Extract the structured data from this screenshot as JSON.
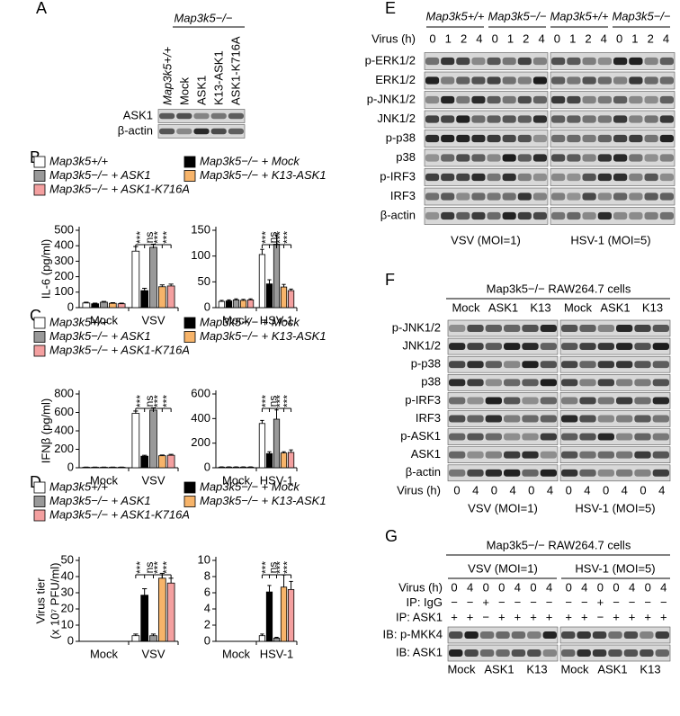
{
  "panel_labels": [
    "A",
    "B",
    "C",
    "D",
    "E",
    "F",
    "G"
  ],
  "blot_A": {
    "header": "Map3k5−/−",
    "lanes": [
      "Map3k5+/+",
      "Mock",
      "ASK1",
      "K13-ASK1",
      "ASK1-K716A"
    ],
    "rows": [
      "ASK1",
      "β-actin"
    ]
  },
  "blot_E": {
    "groups": [
      "Map3k5+/+",
      "Map3k5−/−",
      "Map3k5+/+",
      "Map3k5−/−"
    ],
    "virus_label": "Virus (h)",
    "times": [
      0,
      1,
      2,
      4,
      0,
      1,
      2,
      4,
      0,
      1,
      2,
      4,
      0,
      1,
      2,
      4
    ],
    "rows": [
      "p-ERK1/2",
      "ERK1/2",
      "p-JNK1/2",
      "JNK1/2",
      "p-p38",
      "p38",
      "p-IRF3",
      "IRF3",
      "β-actin"
    ],
    "conditions": [
      "VSV (MOI=1)",
      "HSV-1 (MOI=5)"
    ]
  },
  "blot_F": {
    "title": "Map3k5−/− RAW264.7 cells",
    "groups": [
      "Mock",
      "ASK1",
      "K13",
      "Mock",
      "ASK1",
      "K13"
    ],
    "rows": [
      "p-JNK1/2",
      "JNK1/2",
      "p-p38",
      "p38",
      "p-IRF3",
      "IRF3",
      "p-ASK1",
      "ASK1",
      "β-actin"
    ],
    "virus_label": "Virus (h)",
    "times": [
      0,
      4,
      0,
      4,
      0,
      4,
      0,
      4,
      0,
      4,
      0,
      4
    ],
    "conditions": [
      "VSV (MOI=1)",
      "HSV-1 (MOI=5)"
    ]
  },
  "blot_G": {
    "title": "Map3k5−/− RAW264.7 cells",
    "conditions": [
      "VSV (MOI=1)",
      "HSV-1 (MOI=5)"
    ],
    "row_labels": [
      "Virus (h)",
      "IP: IgG",
      "IP: ASK1"
    ],
    "lane_rows": [
      [
        0,
        4,
        0,
        0,
        4,
        0,
        4,
        0,
        4,
        0,
        0,
        4,
        0,
        4
      ],
      [
        "−",
        "−",
        "+",
        "−",
        "−",
        "−",
        "−",
        "−",
        "−",
        "+",
        "−",
        "−",
        "−",
        "−"
      ],
      [
        "+",
        "+",
        "−",
        "+",
        "+",
        "+",
        "+",
        "+",
        "+",
        "−",
        "+",
        "+",
        "+",
        "+"
      ]
    ],
    "rows": [
      "IB: p-MKK4",
      "IB: ASK1"
    ],
    "groups": [
      "Mock",
      "ASK1",
      "K13",
      "Mock",
      "ASK1",
      "K13"
    ]
  },
  "chart_data": [
    {
      "type": "bar",
      "ylabel": "IL-6 (pg/ml)",
      "categories": [
        "Mock",
        "VSV"
      ],
      "ylim": [
        0,
        500
      ],
      "yticks": [
        0,
        100,
        200,
        300,
        400,
        500
      ],
      "significance": [
        "***",
        "ns",
        "***",
        "***"
      ],
      "series": [
        {
          "name": "Map3k5+/+",
          "color": "#ffffff",
          "values": [
            30,
            365
          ],
          "errors": [
            5,
            30
          ]
        },
        {
          "name": "Map3k5−/− + Mock",
          "color": "#000000",
          "values": [
            25,
            110
          ],
          "errors": [
            4,
            15
          ]
        },
        {
          "name": "Map3k5−/− + ASK1",
          "color": "#999999",
          "values": [
            35,
            390
          ],
          "errors": [
            5,
            20
          ]
        },
        {
          "name": "Map3k5−/− + K13-ASK1",
          "color": "#f7b46a",
          "values": [
            28,
            135
          ],
          "errors": [
            4,
            12
          ]
        },
        {
          "name": "Map3k5−/− + ASK1-K716A",
          "color": "#f4a0a0",
          "values": [
            25,
            140
          ],
          "errors": [
            4,
            12
          ]
        }
      ]
    },
    {
      "type": "bar",
      "categories": [
        "Mock",
        "HSV-1"
      ],
      "ylim": [
        0,
        150
      ],
      "yticks": [
        0,
        50,
        100,
        150
      ],
      "significance": [
        "***",
        "ns",
        "***",
        "***"
      ],
      "series": [
        {
          "color": "#ffffff",
          "values": [
            12,
            103
          ],
          "errors": [
            2,
            10
          ]
        },
        {
          "color": "#000000",
          "values": [
            13,
            46
          ],
          "errors": [
            2,
            8
          ]
        },
        {
          "color": "#999999",
          "values": [
            15,
            123
          ],
          "errors": [
            2,
            18
          ]
        },
        {
          "color": "#f7b46a",
          "values": [
            14,
            40
          ],
          "errors": [
            2,
            5
          ]
        },
        {
          "color": "#f4a0a0",
          "values": [
            15,
            33
          ],
          "errors": [
            2,
            3
          ]
        }
      ]
    },
    {
      "type": "bar",
      "ylabel": "IFNβ (pg/ml)",
      "categories": [
        "Mock",
        "VSV"
      ],
      "ylim": [
        0,
        800
      ],
      "yticks": [
        0,
        200,
        400,
        600,
        800
      ],
      "significance": [
        "***",
        "ns",
        "***",
        "***"
      ],
      "series": [
        {
          "name": "Map3k5+/+",
          "color": "#ffffff",
          "values": [
            5,
            590
          ],
          "errors": [
            2,
            25
          ]
        },
        {
          "name": "Map3k5−/− + Mock",
          "color": "#000000",
          "values": [
            5,
            125
          ],
          "errors": [
            2,
            10
          ]
        },
        {
          "name": "Map3k5−/− + ASK1",
          "color": "#999999",
          "values": [
            5,
            625
          ],
          "errors": [
            2,
            25
          ]
        },
        {
          "name": "Map3k5−/− + K13-ASK1",
          "color": "#f7b46a",
          "values": [
            5,
            130
          ],
          "errors": [
            2,
            8
          ]
        },
        {
          "name": "Map3k5−/− + ASK1-K716A",
          "color": "#f4a0a0",
          "values": [
            5,
            135
          ],
          "errors": [
            2,
            10
          ]
        }
      ]
    },
    {
      "type": "bar",
      "categories": [
        "Mock",
        "HSV-1"
      ],
      "ylim": [
        0,
        600
      ],
      "yticks": [
        0,
        200,
        400,
        600
      ],
      "significance": [
        "***",
        "ns",
        "***",
        "***"
      ],
      "series": [
        {
          "color": "#ffffff",
          "values": [
            5,
            360
          ],
          "errors": [
            2,
            25
          ]
        },
        {
          "color": "#000000",
          "values": [
            5,
            115
          ],
          "errors": [
            2,
            15
          ]
        },
        {
          "color": "#999999",
          "values": [
            5,
            395
          ],
          "errors": [
            2,
            75
          ]
        },
        {
          "color": "#f7b46a",
          "values": [
            5,
            120
          ],
          "errors": [
            2,
            10
          ]
        },
        {
          "color": "#f4a0a0",
          "values": [
            5,
            125
          ],
          "errors": [
            2,
            20
          ]
        }
      ]
    },
    {
      "type": "bar",
      "ylabel": "Virus tier",
      "ylabel2": "(x 10⁷ PFU/ml)",
      "categories": [
        "Mock",
        "VSV"
      ],
      "ylim": [
        0,
        50
      ],
      "yticks": [
        0,
        10,
        20,
        30,
        40,
        50
      ],
      "significance": [
        "***",
        "ns",
        "***",
        "***"
      ],
      "series": [
        {
          "name": "Map3k5+/+",
          "color": "#ffffff",
          "values": [
            0,
            3.5
          ],
          "errors": [
            0,
            1
          ]
        },
        {
          "name": "Map3k5−/− + Mock",
          "color": "#000000",
          "values": [
            0,
            28.5
          ],
          "errors": [
            0,
            4
          ]
        },
        {
          "name": "Map3k5−/− + ASK1",
          "color": "#999999",
          "values": [
            0,
            3.5
          ],
          "errors": [
            0,
            1
          ]
        },
        {
          "name": "Map3k5−/− + K13-ASK1",
          "color": "#f7b46a",
          "values": [
            0,
            39
          ],
          "errors": [
            0,
            3
          ]
        },
        {
          "name": "Map3k5−/− + ASK1-K716A",
          "color": "#f4a0a0",
          "values": [
            0,
            36
          ],
          "errors": [
            0,
            3
          ]
        }
      ]
    },
    {
      "type": "bar",
      "categories": [
        "Mock",
        "HSV-1"
      ],
      "ylim": [
        0,
        10
      ],
      "yticks": [
        0,
        2,
        4,
        6,
        8,
        10
      ],
      "significance": [
        "***",
        "ns",
        "***",
        "***"
      ],
      "series": [
        {
          "color": "#ffffff",
          "values": [
            0,
            0.7
          ],
          "errors": [
            0,
            0.2
          ]
        },
        {
          "color": "#000000",
          "values": [
            0,
            6.1
          ],
          "errors": [
            0,
            0.8
          ]
        },
        {
          "color": "#999999",
          "values": [
            0,
            0.4
          ],
          "errors": [
            0,
            0.1
          ]
        },
        {
          "color": "#f7b46a",
          "values": [
            0,
            6.7
          ],
          "errors": [
            0,
            1.5
          ]
        },
        {
          "color": "#f4a0a0",
          "values": [
            0,
            6.4
          ],
          "errors": [
            0,
            1
          ]
        }
      ]
    }
  ]
}
